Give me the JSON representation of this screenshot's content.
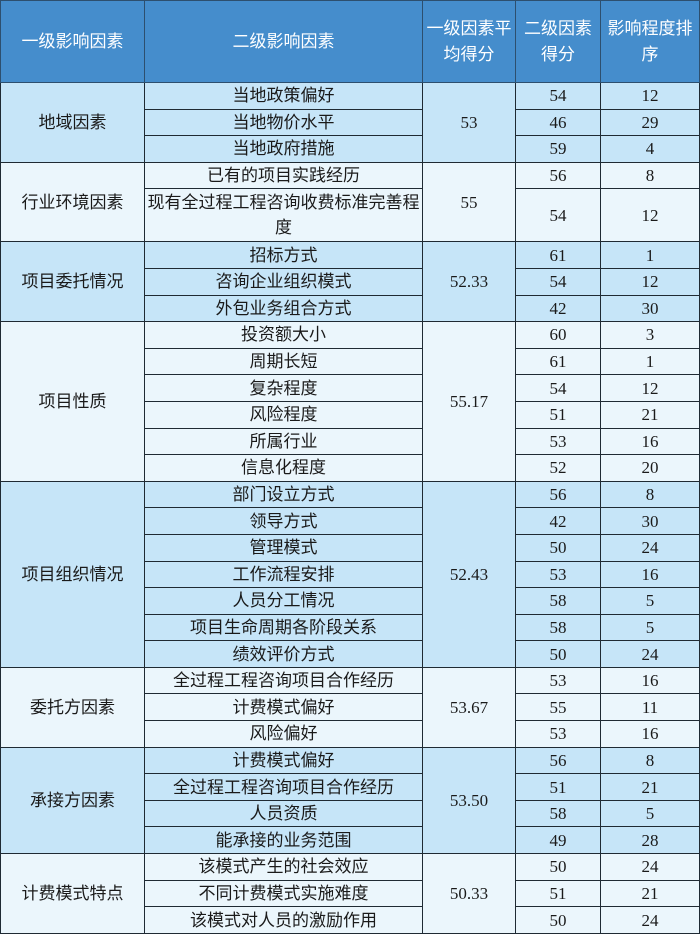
{
  "header": {
    "col1": "一级影响因素",
    "col2": "二级影响因素",
    "col3": "一级因素平均得分",
    "col4": "二级因素得分",
    "col5": "影响程度排序"
  },
  "colors": {
    "header_bg": "#458dcc",
    "group_odd": "#c6e5f8",
    "group_even": "#ebf6fc"
  },
  "groups": [
    {
      "name": "地域因素",
      "avg": "53",
      "items": [
        {
          "name": "当地政策偏好",
          "score": "54",
          "rank": "12"
        },
        {
          "name": "当地物价水平",
          "score": "46",
          "rank": "29"
        },
        {
          "name": "当地政府措施",
          "score": "59",
          "rank": "4"
        }
      ]
    },
    {
      "name": "行业环境因素",
      "avg": "55",
      "items": [
        {
          "name": "已有的项目实践经历",
          "score": "56",
          "rank": "8"
        },
        {
          "name": "现有全过程工程咨询收费标准完善程度",
          "score": "54",
          "rank": "12"
        }
      ]
    },
    {
      "name": "项目委托情况",
      "avg": "52.33",
      "items": [
        {
          "name": "招标方式",
          "score": "61",
          "rank": "1"
        },
        {
          "name": "咨询企业组织模式",
          "score": "54",
          "rank": "12"
        },
        {
          "name": "外包业务组合方式",
          "score": "42",
          "rank": "30"
        }
      ]
    },
    {
      "name": "项目性质",
      "avg": "55.17",
      "items": [
        {
          "name": "投资额大小",
          "score": "60",
          "rank": "3"
        },
        {
          "name": "周期长短",
          "score": "61",
          "rank": "1"
        },
        {
          "name": "复杂程度",
          "score": "54",
          "rank": "12"
        },
        {
          "name": "风险程度",
          "score": "51",
          "rank": "21"
        },
        {
          "name": "所属行业",
          "score": "53",
          "rank": "16"
        },
        {
          "name": "信息化程度",
          "score": "52",
          "rank": "20"
        }
      ]
    },
    {
      "name": "项目组织情况",
      "avg": "52.43",
      "items": [
        {
          "name": "部门设立方式",
          "score": "56",
          "rank": "8"
        },
        {
          "name": "领导方式",
          "score": "42",
          "rank": "30"
        },
        {
          "name": "管理模式",
          "score": "50",
          "rank": "24"
        },
        {
          "name": "工作流程安排",
          "score": "53",
          "rank": "16"
        },
        {
          "name": "人员分工情况",
          "score": "58",
          "rank": "5"
        },
        {
          "name": "项目生命周期各阶段关系",
          "score": "58",
          "rank": "5"
        },
        {
          "name": "绩效评价方式",
          "score": "50",
          "rank": "24"
        }
      ]
    },
    {
      "name": "委托方因素",
      "avg": "53.67",
      "items": [
        {
          "name": "全过程工程咨询项目合作经历",
          "score": "53",
          "rank": "16"
        },
        {
          "name": "计费模式偏好",
          "score": "55",
          "rank": "11"
        },
        {
          "name": "风险偏好",
          "score": "53",
          "rank": "16"
        }
      ]
    },
    {
      "name": "承接方因素",
      "avg": "53.50",
      "items": [
        {
          "name": "计费模式偏好",
          "score": "56",
          "rank": "8"
        },
        {
          "name": "全过程工程咨询项目合作经历",
          "score": "51",
          "rank": "21"
        },
        {
          "name": "人员资质",
          "score": "58",
          "rank": "5"
        },
        {
          "name": "能承接的业务范围",
          "score": "49",
          "rank": "28"
        }
      ]
    },
    {
      "name": "计费模式特点",
      "avg": "50.33",
      "items": [
        {
          "name": "该模式产生的社会效应",
          "score": "50",
          "rank": "24"
        },
        {
          "name": "不同计费模式实施难度",
          "score": "51",
          "rank": "21"
        },
        {
          "name": "该模式对人员的激励作用",
          "score": "50",
          "rank": "24"
        }
      ]
    }
  ]
}
